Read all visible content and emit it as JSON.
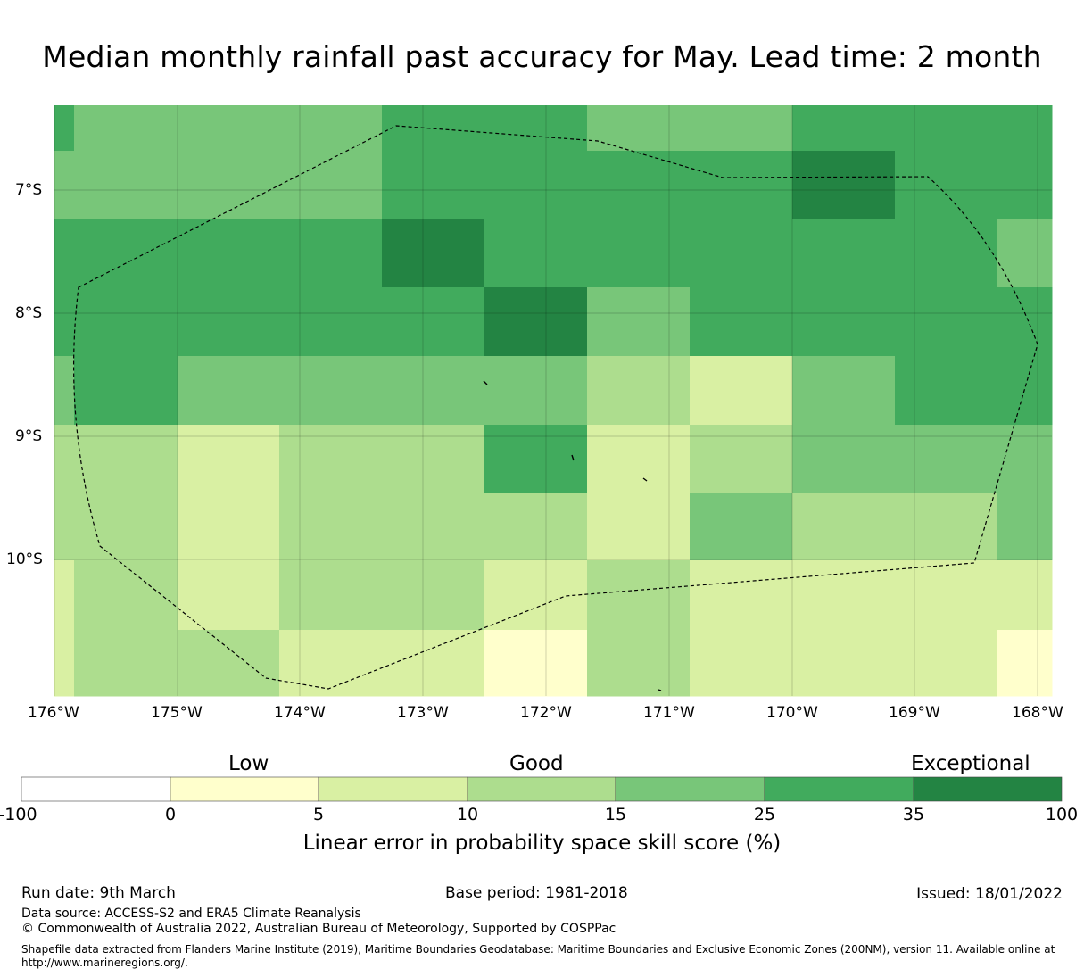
{
  "title": "Median monthly rainfall past accuracy for May. Lead time: 2 month",
  "map": {
    "lon_ticks": [
      "176°W",
      "175°W",
      "174°W",
      "173°W",
      "172°W",
      "171°W",
      "170°W",
      "169°W",
      "168°W"
    ],
    "lat_ticks": [
      "7°S",
      "8°S",
      "9°S",
      "10°S"
    ],
    "bin_colors": [
      "#ffffff",
      "#ffffcc",
      "#d9f0a3",
      "#addd8e",
      "#78c679",
      "#41ab5d",
      "#238443"
    ],
    "eez_style": "dashed-black"
  },
  "colorbar": {
    "category_labels": [
      "Low",
      "Good",
      "Exceptional"
    ],
    "ticks": [
      "-100",
      "0",
      "5",
      "10",
      "15",
      "25",
      "35",
      "100"
    ],
    "xlabel": "Linear error in probability space skill score (%)"
  },
  "footer": {
    "run_date": "Run date: 9th March",
    "base_period": "Base period: 1981-2018",
    "issued": "Issued: 18/01/2022",
    "data_source": "Data source: ACCESS-S2 and ERA5 Climate Reanalysis",
    "copyright": "© Commonwealth of Australia 2022, Australian Bureau of Meteorology, Supported by COSPPac",
    "shapefile": "Shapefile data extracted from Flanders Marine Institute (2019), Maritime Boundaries Geodatabase: Maritime Boundaries and Exclusive Economic Zones (200NM), version 11. Available online at http://www.marineregions.org/."
  }
}
